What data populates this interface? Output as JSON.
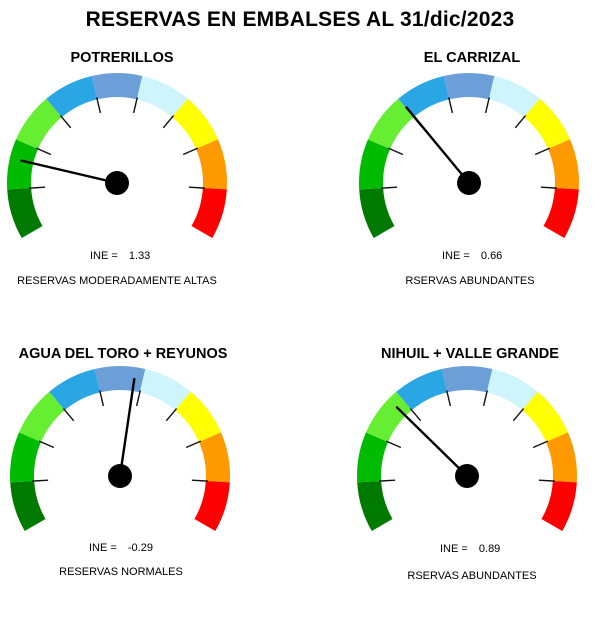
{
  "title": "RESERVAS EN EMBALSES AL 31/dic/2023",
  "chart_data": [
    {
      "type": "gauge",
      "title": "POTRERILLOS",
      "ine_label": "INE =",
      "ine": "1.33",
      "status": "RESERVAS MODERADAMENTE ALTAS",
      "needle_position": 0.18
    },
    {
      "type": "gauge",
      "title": "EL CARRIZAL",
      "ine_label": "INE =",
      "ine": "0.66",
      "status": "RSERVAS ABUNDANTES",
      "needle_position": 0.335
    },
    {
      "type": "gauge",
      "title": "AGUA DEL TORO + REYUNOS",
      "ine_label": "INE =",
      "ine": "-0.29",
      "status": "RESERVAS NORMALES",
      "needle_position": 0.535
    },
    {
      "type": "gauge",
      "title": "NIHUIL + VALLE GRANDE",
      "ine_label": "INE =",
      "ine": "0.89",
      "status": "RSERVAS ABUNDANTES",
      "needle_position": 0.31
    }
  ],
  "segment_colors": [
    "#007a00",
    "#00bb00",
    "#66ee33",
    "#2aa6e4",
    "#6c9fd8",
    "#cdf5fb",
    "#ffff00",
    "#ff9900",
    "#ff0000"
  ]
}
